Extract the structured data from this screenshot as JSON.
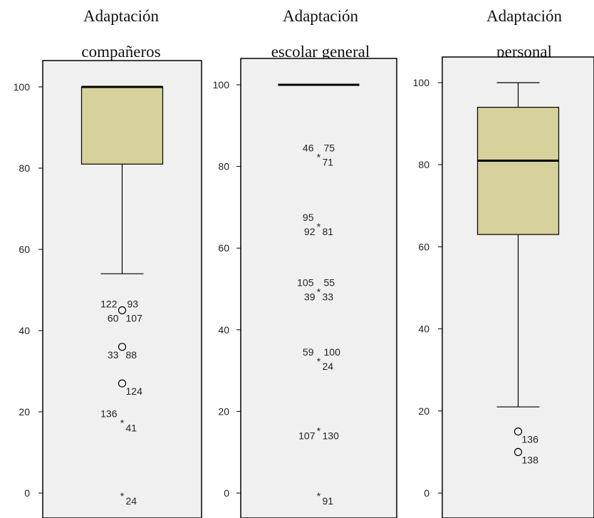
{
  "colors": {
    "plot_background": "#f0f0f0",
    "box_fill": "#d6d09b",
    "frame": "#000000",
    "text": "#222222"
  },
  "chart_data": [
    {
      "type": "boxplot",
      "title_lines": [
        "Adaptación",
        "compañeros"
      ],
      "ylim": [
        0,
        100
      ],
      "yticks": [
        0,
        20,
        40,
        60,
        80,
        100
      ],
      "box": {
        "lower_whisker": 54,
        "q1": 81,
        "median": 100,
        "q3": 100,
        "upper_whisker": 100
      },
      "outliers": [
        {
          "value": 45,
          "marker": "circle",
          "labels_above": [
            "122",
            "93"
          ],
          "labels_below": [
            "60",
            "107"
          ]
        },
        {
          "value": 36,
          "marker": "circle",
          "labels_above": [],
          "labels_below": [
            "33",
            "88"
          ]
        },
        {
          "value": 27,
          "marker": "circle",
          "labels_above": [],
          "labels_below": [
            "124"
          ]
        },
        {
          "value": 18,
          "marker": "asterisk",
          "labels_above": [
            "136"
          ],
          "labels_below": [
            "41"
          ]
        },
        {
          "value": 0,
          "marker": "asterisk",
          "labels_above": [],
          "labels_below": [
            "24"
          ]
        }
      ],
      "grid": false
    },
    {
      "type": "boxplot",
      "title_lines": [
        "Adaptación",
        "escolar general"
      ],
      "ylim": [
        0,
        100
      ],
      "yticks": [
        0,
        20,
        40,
        60,
        80,
        100
      ],
      "box": {
        "lower_whisker": 100,
        "q1": 100,
        "median": 100,
        "q3": 100,
        "upper_whisker": 100
      },
      "outliers": [
        {
          "value": 83,
          "marker": "asterisk",
          "labels_above": [
            "46",
            "75"
          ],
          "labels_below": [
            "71"
          ]
        },
        {
          "value": 66,
          "marker": "asterisk",
          "labels_above": [
            "95"
          ],
          "labels_below": [
            "92",
            "81"
          ]
        },
        {
          "value": 50,
          "marker": "asterisk",
          "labels_above": [
            "105",
            "55"
          ],
          "labels_below": [
            "39",
            "33"
          ]
        },
        {
          "value": 33,
          "marker": "asterisk",
          "labels_above": [
            "59",
            "100"
          ],
          "labels_below": [
            "24"
          ]
        },
        {
          "value": 16,
          "marker": "asterisk",
          "labels_above": [],
          "labels_below": [
            "107",
            "130"
          ]
        },
        {
          "value": 0,
          "marker": "asterisk",
          "labels_above": [],
          "labels_below": [
            "91"
          ]
        }
      ],
      "grid": false
    },
    {
      "type": "boxplot",
      "title_lines": [
        "Adaptación",
        "personal"
      ],
      "ylim": [
        0,
        100
      ],
      "yticks": [
        0,
        20,
        40,
        60,
        80,
        100
      ],
      "box": {
        "lower_whisker": 21,
        "q1": 63,
        "median": 81,
        "q3": 94,
        "upper_whisker": 100
      },
      "outliers": [
        {
          "value": 15,
          "marker": "circle",
          "labels_above": [],
          "labels_below": [
            "136"
          ]
        },
        {
          "value": 10,
          "marker": "circle",
          "labels_above": [],
          "labels_below": [
            "138"
          ]
        }
      ],
      "grid": false
    }
  ]
}
